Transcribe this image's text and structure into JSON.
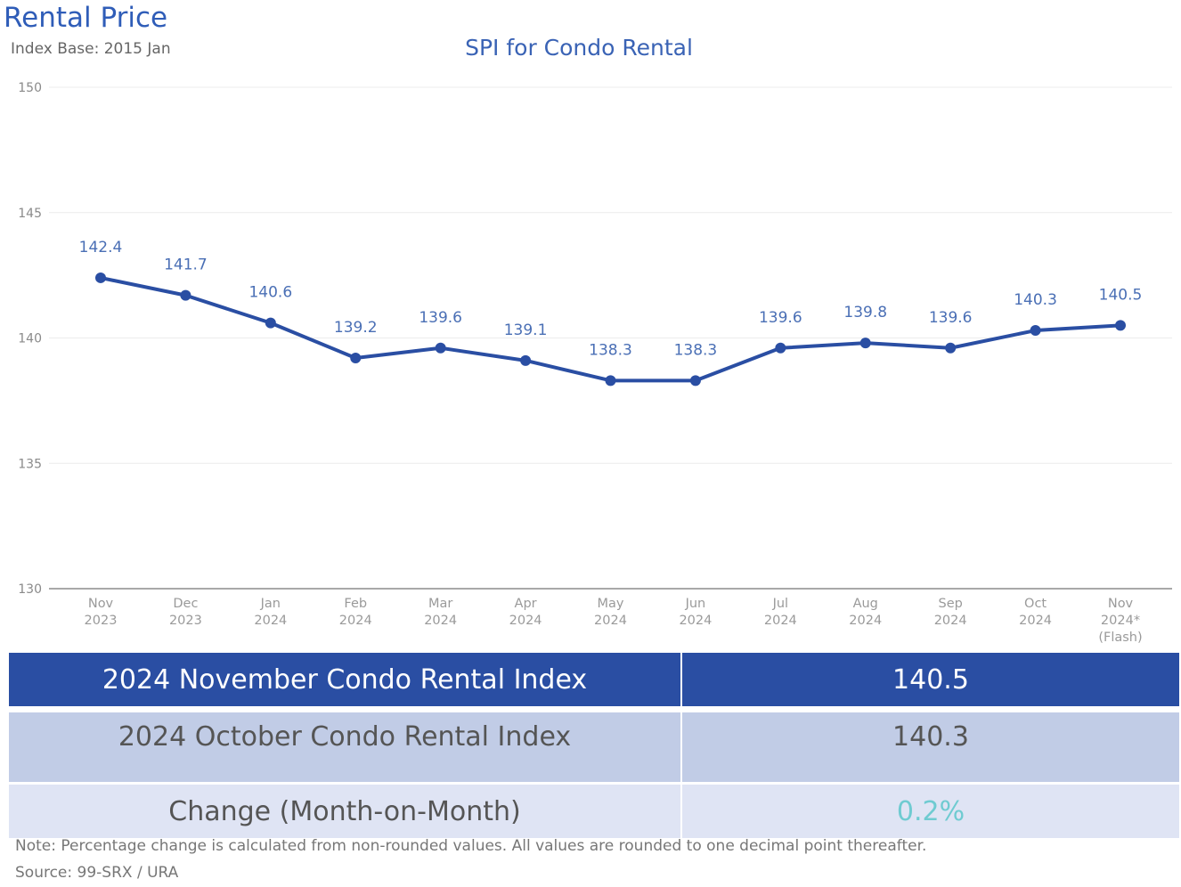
{
  "header": {
    "title": "Rental Price",
    "index_base": "Index Base: 2015 Jan"
  },
  "chart_data": {
    "type": "line",
    "title": "SPI for Condo Rental",
    "xlabel": "",
    "ylabel": "",
    "ylim": [
      130,
      150
    ],
    "yticks": [
      130,
      135,
      140,
      145,
      150
    ],
    "grid": true,
    "categories": [
      [
        "Nov",
        "2023"
      ],
      [
        "Dec",
        "2023"
      ],
      [
        "Jan",
        "2024"
      ],
      [
        "Feb",
        "2024"
      ],
      [
        "Mar",
        "2024"
      ],
      [
        "Apr",
        "2024"
      ],
      [
        "May",
        "2024"
      ],
      [
        "Jun",
        "2024"
      ],
      [
        "Jul",
        "2024"
      ],
      [
        "Aug",
        "2024"
      ],
      [
        "Sep",
        "2024"
      ],
      [
        "Oct",
        "2024"
      ],
      [
        "Nov",
        "2024*",
        "(Flash)"
      ]
    ],
    "series": [
      {
        "name": "SPI for Condo Rental",
        "color": "#2a4ea3",
        "values": [
          142.4,
          141.7,
          140.6,
          139.2,
          139.6,
          139.1,
          138.3,
          138.3,
          139.6,
          139.8,
          139.6,
          140.3,
          140.5
        ]
      }
    ]
  },
  "summary_table": {
    "rows": [
      {
        "label": "2024 November Condo Rental Index",
        "value": "140.5"
      },
      {
        "label": "2024 October Condo Rental Index",
        "value": "140.3"
      },
      {
        "label": "Change (Month-on-Month)",
        "value": "0.2%"
      }
    ]
  },
  "footer": {
    "note": "Note: Percentage change is calculated from non-rounded values.  All values are rounded to one decimal point thereafter.",
    "source": "Source: 99-SRX / URA"
  },
  "colors": {
    "title": "#2f5db8",
    "line": "#2a4ea3",
    "row1_bg": "#2a4ea3",
    "row2_bg": "#c1cce6",
    "row3_bg": "#dfe4f4",
    "change_value": "#6fcbd1"
  }
}
